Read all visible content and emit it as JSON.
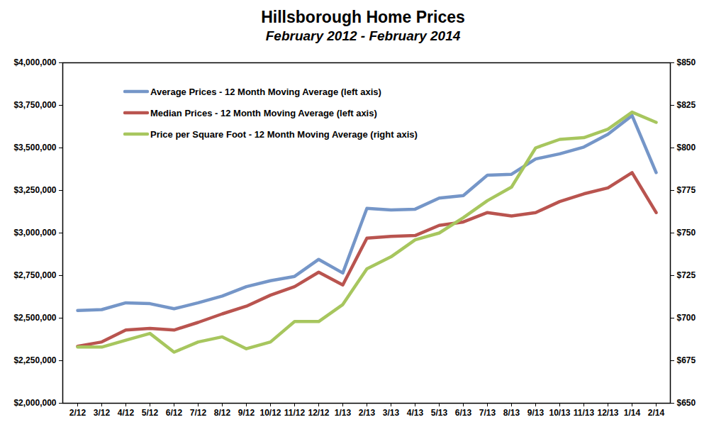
{
  "chart_data": {
    "type": "line",
    "title": "Hillsborough Home Prices",
    "subtitle": "February 2012 - February 2014",
    "categories": [
      "2/12",
      "3/12",
      "4/12",
      "5/12",
      "6/12",
      "7/12",
      "8/12",
      "9/12",
      "10/12",
      "11/12",
      "12/12",
      "1/13",
      "2/13",
      "3/13",
      "4/13",
      "5/13",
      "6/13",
      "7/13",
      "8/13",
      "9/13",
      "10/13",
      "11/13",
      "12/13",
      "1/14",
      "2/14"
    ],
    "series": [
      {
        "name": "Average Prices - 12 Month Moving Average (left axis)",
        "color": "#7596c8",
        "values": [
          2545000,
          2550000,
          2590000,
          2585000,
          2555000,
          2590000,
          2630000,
          2685000,
          2720000,
          2745000,
          2845000,
          2765000,
          3145000,
          3135000,
          3140000,
          3205000,
          3220000,
          3340000,
          3345000,
          3435000,
          3465000,
          3505000,
          3580000,
          3690000,
          3355000
        ]
      },
      {
        "name": "Median Prices - 12 Month Moving Average (left axis)",
        "color": "#b9544f",
        "values": [
          2335000,
          2360000,
          2430000,
          2440000,
          2430000,
          2475000,
          2525000,
          2570000,
          2635000,
          2685000,
          2770000,
          2695000,
          2970000,
          2980000,
          2985000,
          3045000,
          3065000,
          3120000,
          3100000,
          3120000,
          3185000,
          3230000,
          3265000,
          3355000,
          3120000
        ]
      },
      {
        "name": "Price per Square Foot - 12 Month Moving Average (right axis)",
        "color": "#a7c65e",
        "axis": "y2",
        "values": [
          683,
          683,
          687,
          691,
          680,
          686,
          689,
          682,
          686,
          698,
          698,
          708,
          729,
          736,
          746,
          750,
          759,
          769,
          777,
          800,
          805,
          806,
          811,
          821,
          815
        ]
      }
    ],
    "ylim": [
      2000000,
      4000000
    ],
    "yticks": [
      {
        "value": 2000000,
        "label": "$2,000,000"
      },
      {
        "value": 2250000,
        "label": "$2,250,000"
      },
      {
        "value": 2500000,
        "label": "$2,500,000"
      },
      {
        "value": 2750000,
        "label": "$2,750,000"
      },
      {
        "value": 3000000,
        "label": "$3,000,000"
      },
      {
        "value": 3250000,
        "label": "$3,250,000"
      },
      {
        "value": 3500000,
        "label": "$3,500,000"
      },
      {
        "value": 3750000,
        "label": "$3,750,000"
      },
      {
        "value": 4000000,
        "label": "$4,000,000"
      }
    ],
    "y2lim": [
      650,
      850
    ],
    "y2ticks": [
      {
        "value": 650,
        "label": "$650"
      },
      {
        "value": 675,
        "label": "$675"
      },
      {
        "value": 700,
        "label": "$700"
      },
      {
        "value": 725,
        "label": "$725"
      },
      {
        "value": 750,
        "label": "$750"
      },
      {
        "value": 775,
        "label": "$775"
      },
      {
        "value": 800,
        "label": "$800"
      },
      {
        "value": 825,
        "label": "$825"
      },
      {
        "value": 850,
        "label": "$850"
      }
    ],
    "legend": "top-left",
    "grid": false
  }
}
